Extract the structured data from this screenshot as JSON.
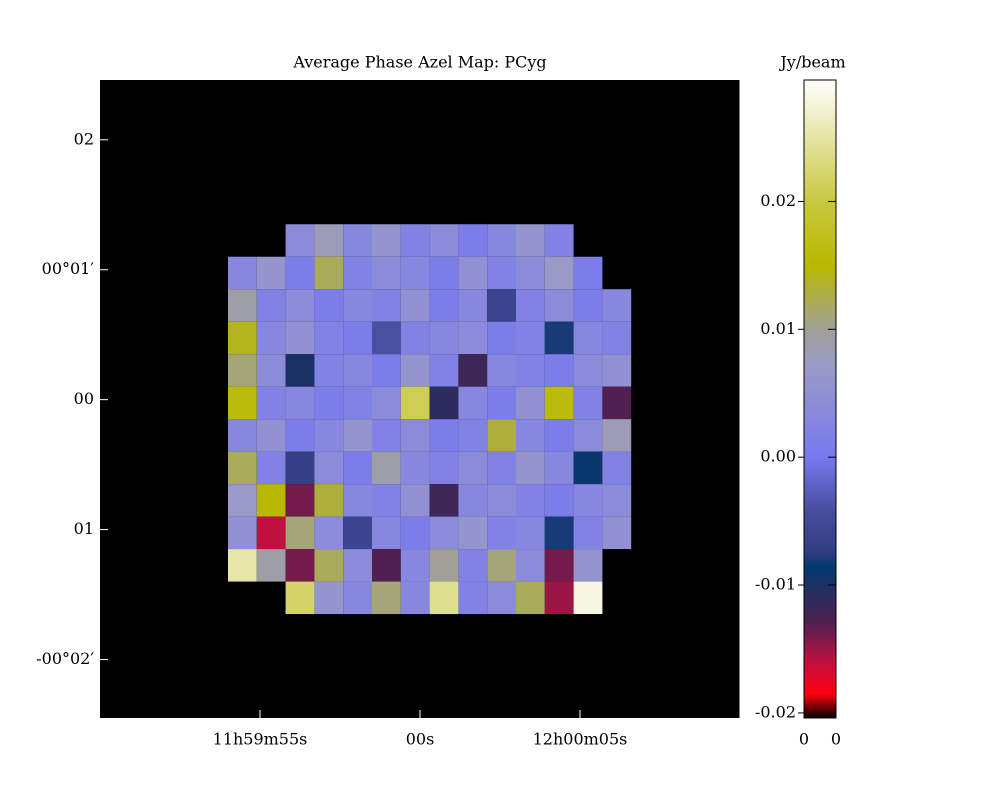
{
  "chart_data": {
    "type": "heatmap",
    "title": "Average  Phase Azel Map: PCyg",
    "xlim": [
      -10,
      10
    ],
    "ylim": [
      -2.45,
      2.46
    ],
    "xticks": [
      {
        "value": -5,
        "label": "11h59m55s"
      },
      {
        "value": 0,
        "label": "00s"
      },
      {
        "value": 5,
        "label": "12h00m05s"
      }
    ],
    "yticks": [
      {
        "value": 2,
        "label": "02"
      },
      {
        "value": 1,
        "label": "00°01′"
      },
      {
        "value": 0,
        "label": "00"
      },
      {
        "value": -1,
        "label": "01"
      },
      {
        "value": -2,
        "label": "-00°02′"
      }
    ],
    "x_edges": [
      -6,
      -5.1,
      -4.2,
      -3.3,
      -2.4,
      -1.5,
      -0.6,
      0.3,
      1.2,
      2.1,
      3,
      3.9,
      4.8,
      5.7,
      6.6
    ],
    "y_edges": [
      1.35,
      1.1,
      0.85,
      0.6,
      0.35,
      0.1,
      -0.15,
      -0.4,
      -0.65,
      -0.9,
      -1.15,
      -1.4,
      -1.65
    ],
    "z": [
      [
        null,
        null,
        0.004,
        0.008,
        0.003,
        0.006,
        0.002,
        0.004,
        0.001,
        0.003,
        0.006,
        0.002,
        null,
        null
      ],
      [
        0.003,
        0.006,
        0.001,
        0.012,
        0.002,
        0.004,
        0.003,
        0.001,
        0.005,
        0.002,
        0.004,
        0.007,
        0.001,
        null
      ],
      [
        0.009,
        0.002,
        0.004,
        0.001,
        0.003,
        0.002,
        0.005,
        0.001,
        0.003,
        -0.006,
        0.002,
        0.004,
        0.001,
        0.003
      ],
      [
        0.014,
        0.003,
        0.005,
        0.002,
        0.001,
        -0.004,
        0.002,
        0.003,
        0.004,
        0.001,
        0.002,
        -0.008,
        0.003,
        0.002
      ],
      [
        0.011,
        0.004,
        -0.01,
        0.002,
        0.003,
        0.001,
        0.006,
        0.002,
        -0.012,
        0.003,
        0.002,
        0.001,
        0.004,
        0.005
      ],
      [
        0.016,
        0.002,
        0.003,
        0.001,
        0.002,
        0.004,
        0.021,
        -0.011,
        0.003,
        0.001,
        0.005,
        0.016,
        0.002,
        -0.013
      ],
      [
        0.003,
        0.005,
        0.001,
        0.003,
        0.006,
        0.002,
        0.004,
        0.001,
        0.002,
        0.013,
        0.003,
        0.001,
        0.004,
        0.008
      ],
      [
        0.012,
        0.002,
        -0.007,
        0.004,
        0.001,
        0.009,
        0.003,
        0.002,
        0.004,
        0.002,
        0.006,
        0.003,
        -0.009,
        0.002
      ],
      [
        0.007,
        0.015,
        -0.014,
        0.013,
        0.003,
        0.002,
        0.005,
        -0.012,
        0.003,
        0.004,
        0.002,
        0.001,
        0.003,
        0.004
      ],
      [
        0.005,
        -0.016,
        0.011,
        0.004,
        -0.006,
        0.003,
        0.001,
        0.004,
        0.006,
        0.002,
        0.003,
        -0.008,
        0.002,
        0.005
      ],
      [
        0.025,
        0.009,
        -0.014,
        0.012,
        0.004,
        -0.013,
        0.003,
        0.01,
        0.002,
        0.011,
        0.004,
        -0.014,
        0.006,
        null
      ],
      [
        null,
        null,
        0.022,
        0.006,
        0.003,
        0.011,
        0.003,
        0.024,
        0.002,
        0.004,
        0.012,
        -0.015,
        0.028,
        null
      ]
    ],
    "colorbar": {
      "title": "Jy/beam",
      "clim": [
        -0.0204,
        0.0295
      ],
      "ticks": [
        0.02,
        0.01,
        {
          "value": 0,
          "label": "0.00"
        },
        -0.01,
        -0.02
      ],
      "bottom_labels": [
        "0",
        "0"
      ],
      "colormap": [
        {
          "value": -0.0204,
          "color": "#000000"
        },
        {
          "value": -0.0185,
          "color": "#ff0010"
        },
        {
          "value": -0.016,
          "color": "#c01040"
        },
        {
          "value": -0.013,
          "color": "#502050"
        },
        {
          "value": -0.0085,
          "color": "#003a70"
        },
        {
          "value": -0.0075,
          "color": "#303c80"
        },
        {
          "value": -0.004,
          "color": "#4a4fa0"
        },
        {
          "value": 0,
          "color": "#7878f0"
        },
        {
          "value": 0.007,
          "color": "#9a9ac8"
        },
        {
          "value": 0.01,
          "color": "#a0a098"
        },
        {
          "value": 0.015,
          "color": "#b8b800"
        },
        {
          "value": 0.02,
          "color": "#c8c840"
        },
        {
          "value": 0.0295,
          "color": "#ffffff"
        }
      ]
    },
    "background": "#000000"
  }
}
